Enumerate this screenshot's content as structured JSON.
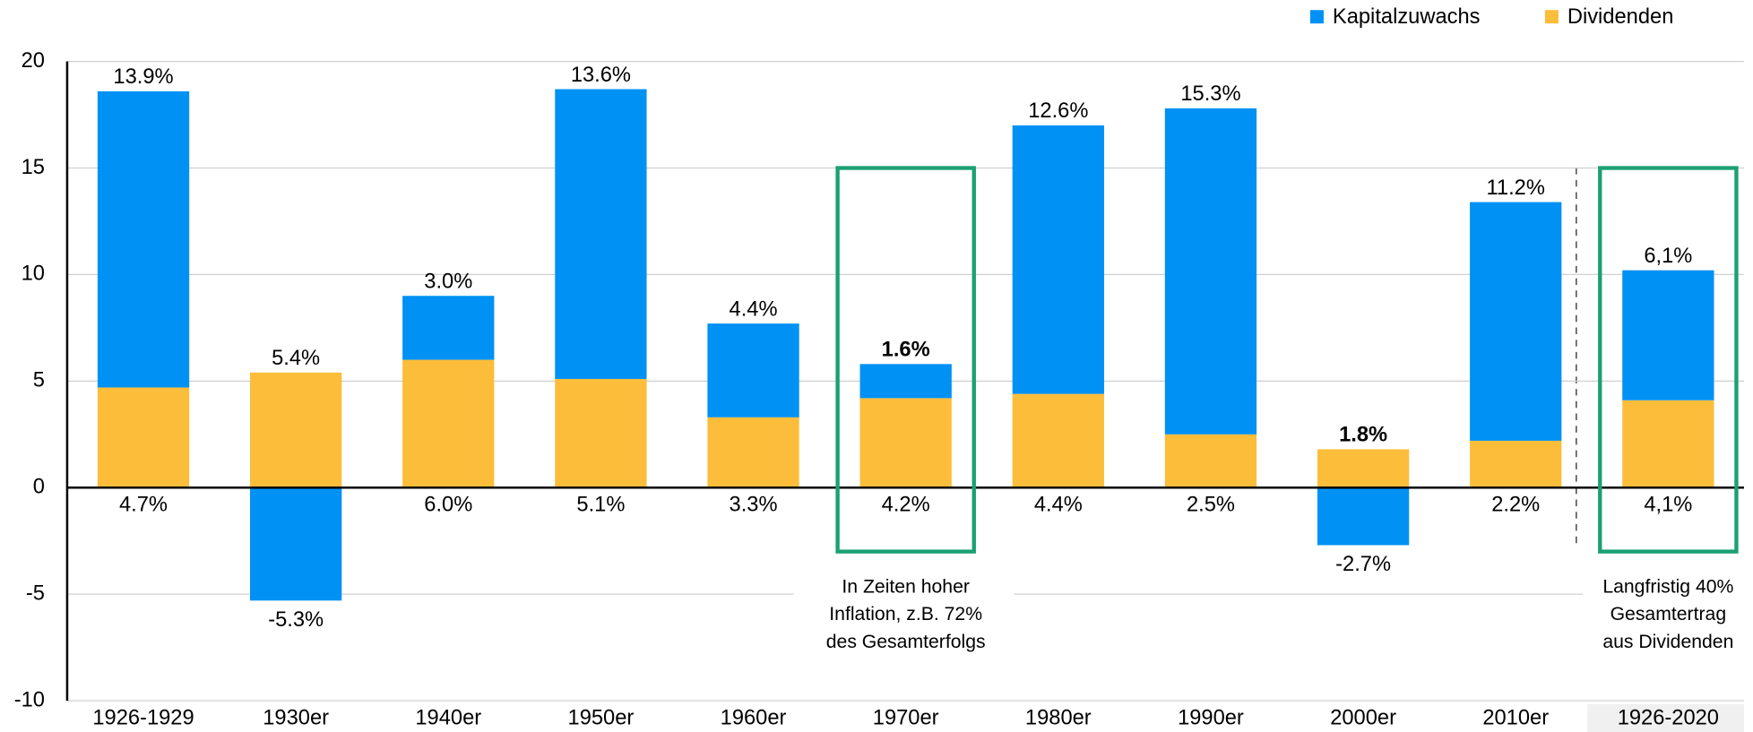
{
  "chart_data": {
    "type": "stacked_bar",
    "categories": [
      "1926-1929",
      "1930er",
      "1940er",
      "1950er",
      "1960er",
      "1970er",
      "1980er",
      "1990er",
      "2000er",
      "2010er",
      "1926-2020"
    ],
    "series": [
      {
        "name": "Dividenden",
        "color": "#fbbd3a",
        "values": [
          4.7,
          5.4,
          6.0,
          5.1,
          3.3,
          4.2,
          4.4,
          2.5,
          1.8,
          2.2,
          4.1
        ],
        "value_labels": [
          "4.7%",
          "5.4%",
          "6.0%",
          "5.1%",
          "3.3%",
          "4.2%",
          "4.4%",
          "2.5%",
          "1.8%",
          "2.2%",
          "4,1%"
        ]
      },
      {
        "name": "Kapitalzuwachs",
        "color": "#0091f5",
        "values": [
          13.9,
          -5.3,
          3.0,
          13.6,
          4.4,
          1.6,
          12.6,
          15.3,
          -2.7,
          11.2,
          6.1
        ],
        "value_labels": [
          "13.9%",
          "-5.3%",
          "3.0%",
          "13.6%",
          "4.4%",
          "1.6%",
          "12.6%",
          "15.3%",
          "-2.7%",
          "11.2%",
          "6,1%"
        ]
      }
    ],
    "ylim": [
      -10,
      20
    ],
    "yticks": [
      -10,
      -5,
      0,
      5,
      10,
      15,
      20
    ],
    "grid": true,
    "annotations": [
      [
        "In Zeiten hoher",
        "Inflation, z.B. 72%",
        "des Gesamterfolgs"
      ],
      [
        "Langfristig 40%",
        "Gesamtertrag",
        "aus Dividenden"
      ]
    ]
  }
}
